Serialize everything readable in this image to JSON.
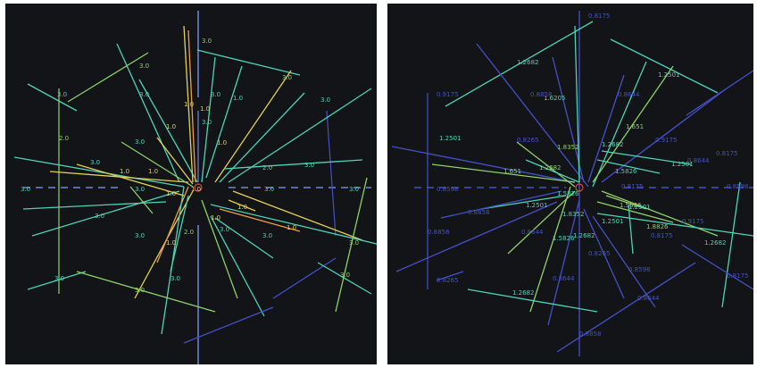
{
  "colors": {
    "background": "#121418",
    "separator": "#ffffff",
    "teal": "#4fd3b5",
    "green": "#8fd16b",
    "yellow": "#e3d15a",
    "orange": "#ef9b4a",
    "red": "#e2453a",
    "blue": "#4550c9",
    "lightblue": "#6f86d8"
  },
  "left_panel": {
    "labels": [
      "3.0",
      "3.0",
      "3.0",
      "3.0",
      "3.0",
      "2.0",
      "1.0",
      "1.0",
      "1.0",
      "1.0",
      "3.0",
      "3.0",
      "3.0",
      "3.0",
      "1.0",
      "1.0",
      "1.0",
      "2.0",
      "3.0",
      "3.0",
      "3.0",
      "3.0",
      "3.0",
      "3.0",
      "1.0",
      "1.0",
      "1.0",
      "1.0",
      "3.0",
      "1.0",
      "1.0",
      "3.0",
      "2.0",
      "3.0",
      "3.0",
      "3.0",
      "3.0",
      "3.0",
      "3.0",
      "3.0"
    ]
  },
  "right_panel": {
    "labels": [
      "1.2682",
      "1.2501",
      "1.6205",
      "1.2501",
      "1.651",
      "1.2682",
      "1.2501",
      "1.2682",
      "1.651",
      "1.8352",
      "1.5826",
      "1.2501",
      "1.8352",
      "1.5826",
      "1.2501",
      "1.5826",
      "1.5626",
      "1.2501",
      "1.2682",
      "1.8826",
      "1.2682",
      "1.2682",
      "0.8175",
      "0.9175",
      "0.8858",
      "0.8644",
      "0.8265",
      "0.9175",
      "0.8644",
      "0.8175",
      "0.8598",
      "0.8175",
      "0.8598",
      "0.8858",
      "0.8644",
      "0.9175",
      "0.8858",
      "0.8175",
      "0.8265",
      "0.8598",
      "0.8644",
      "0.8175",
      "0.8265",
      "0.8644",
      "0.8858"
    ]
  }
}
